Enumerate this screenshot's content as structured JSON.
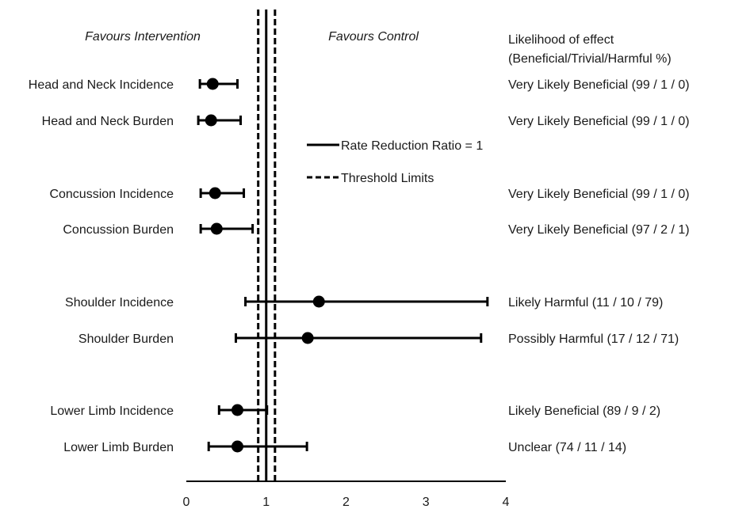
{
  "chart_data": {
    "type": "forest",
    "header_left": "Favours Intervention",
    "header_right": "Favours Control",
    "likelihood_header": [
      "Likelihood of effect",
      "(Beneficial/Trivial/Harmful %)"
    ],
    "legend": [
      {
        "label": "Rate Reduction Ratio = 1",
        "style": "solid"
      },
      {
        "label": "Threshold Limits",
        "style": "dashed"
      }
    ],
    "reference_line": 1,
    "threshold_limits": [
      0.9,
      1.11
    ],
    "xlim": [
      0,
      4
    ],
    "x_ticks": [
      "0",
      "1",
      "2",
      "3",
      "4"
    ],
    "rows": [
      {
        "label": "Head and Neck Incidence",
        "estimate": 0.33,
        "lower": 0.17,
        "upper": 0.64,
        "likelihood": "Very Likely Beneficial (99 / 1 / 0)"
      },
      {
        "label": "Head and Neck Burden",
        "estimate": 0.31,
        "lower": 0.15,
        "upper": 0.68,
        "likelihood": "Very Likely Beneficial (99 / 1 / 0)"
      },
      {
        "label": "Concussion Incidence",
        "estimate": 0.36,
        "lower": 0.18,
        "upper": 0.72,
        "likelihood": "Very Likely Beneficial (99 / 1 / 0)"
      },
      {
        "label": "Concussion Burden",
        "estimate": 0.38,
        "lower": 0.18,
        "upper": 0.83,
        "likelihood": "Very Likely Beneficial (97 / 2 / 1)"
      },
      {
        "label": "Shoulder Incidence",
        "estimate": 1.66,
        "lower": 0.74,
        "upper": 3.77,
        "likelihood": "Likely Harmful (11 / 10 / 79)"
      },
      {
        "label": "Shoulder Burden",
        "estimate": 1.52,
        "lower": 0.62,
        "upper": 3.69,
        "likelihood": "Possibly Harmful (17 / 12 / 71)"
      },
      {
        "label": "Lower Limb Incidence",
        "estimate": 0.64,
        "lower": 0.41,
        "upper": 1.01,
        "likelihood": "Likely Beneficial (89 / 9 / 2)"
      },
      {
        "label": "Lower Limb Burden",
        "estimate": 0.64,
        "lower": 0.28,
        "upper": 1.51,
        "likelihood": "Unclear (74 / 11 / 14)"
      }
    ]
  }
}
